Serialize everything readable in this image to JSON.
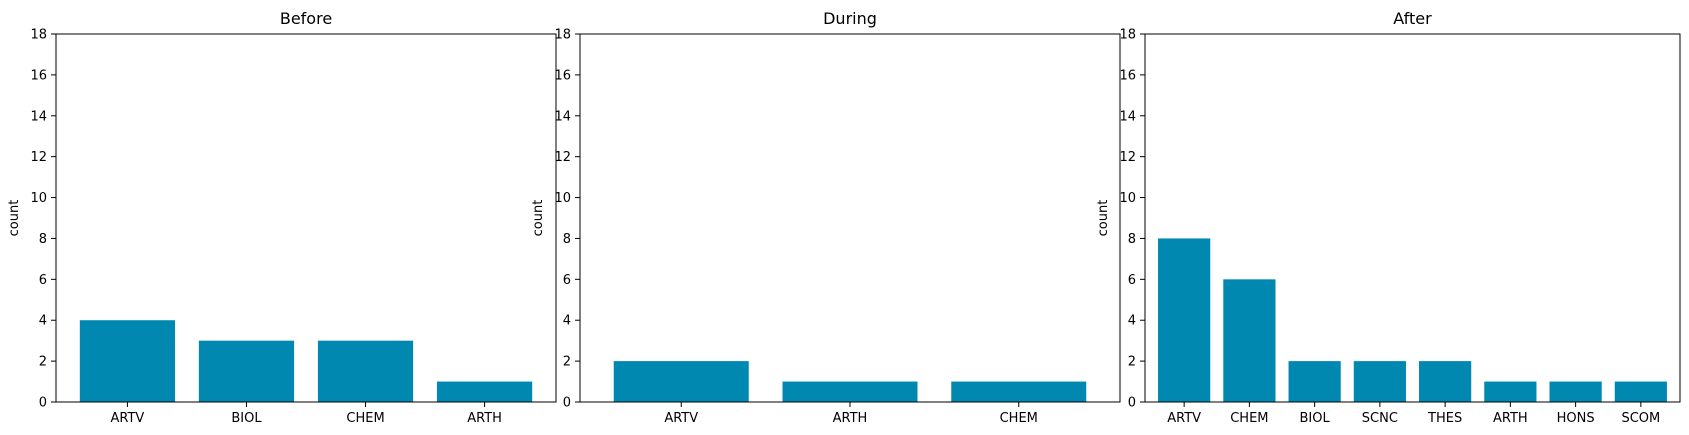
{
  "figure": {
    "bar_color": "#0088B0",
    "background": "#ffffff"
  },
  "chart_data": [
    {
      "type": "bar",
      "title": "Before",
      "xlabel": "",
      "ylabel": "count",
      "ylim": [
        0,
        18
      ],
      "yticks": [
        0,
        2,
        4,
        6,
        8,
        10,
        12,
        14,
        16,
        18
      ],
      "categories": [
        "ARTV",
        "BIOL",
        "CHEM",
        "ARTH"
      ],
      "values": [
        4,
        3,
        3,
        1
      ]
    },
    {
      "type": "bar",
      "title": "During",
      "xlabel": "",
      "ylabel": "count",
      "ylim": [
        0,
        18
      ],
      "yticks": [
        0,
        2,
        4,
        6,
        8,
        10,
        12,
        14,
        16,
        18
      ],
      "categories": [
        "ARTV",
        "ARTH",
        "CHEM"
      ],
      "values": [
        2,
        1,
        1
      ]
    },
    {
      "type": "bar",
      "title": "After",
      "xlabel": "",
      "ylabel": "count",
      "ylim": [
        0,
        18
      ],
      "yticks": [
        0,
        2,
        4,
        6,
        8,
        10,
        12,
        14,
        16,
        18
      ],
      "categories": [
        "ARTV",
        "CHEM",
        "BIOL",
        "SCNC",
        "THES",
        "ARTH",
        "HONS",
        "SCOM"
      ],
      "values": [
        8,
        6,
        2,
        2,
        2,
        1,
        1,
        1
      ]
    }
  ]
}
